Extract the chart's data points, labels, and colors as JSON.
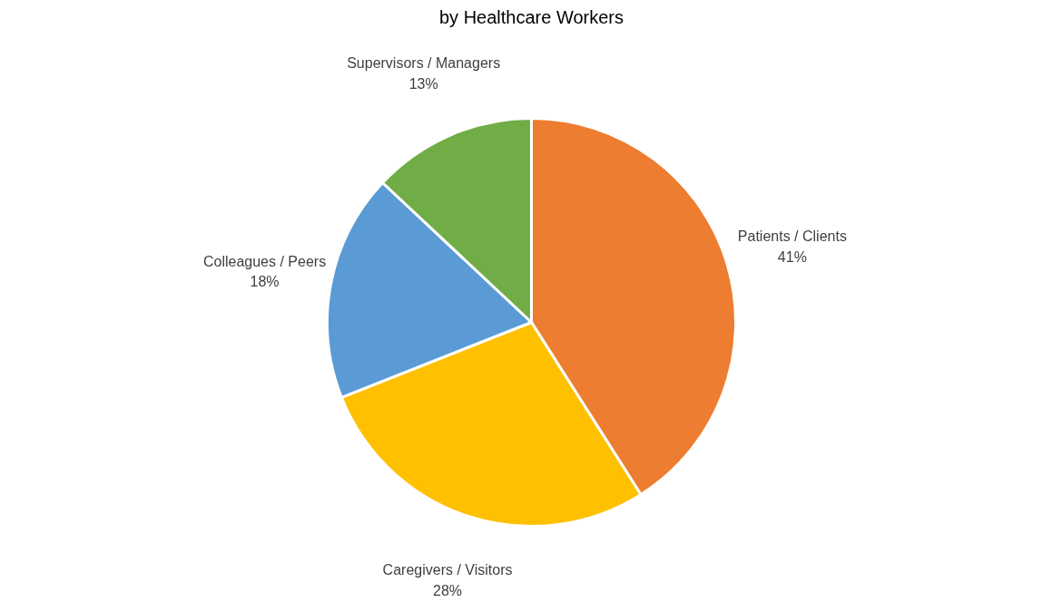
{
  "chart_data": {
    "type": "pie",
    "title": "by Healthcare Workers",
    "categories": [
      "Patients / Clients",
      "Caregivers / Visitors",
      "Colleagues / Peers",
      "Supervisors / Managers"
    ],
    "values": [
      41,
      28,
      18,
      13
    ],
    "colors": [
      "#ed7d31",
      "#ffc000",
      "#5b9bd5",
      "#70ad47"
    ],
    "value_labels": [
      "41%",
      "28%",
      "18%",
      "13%"
    ]
  }
}
